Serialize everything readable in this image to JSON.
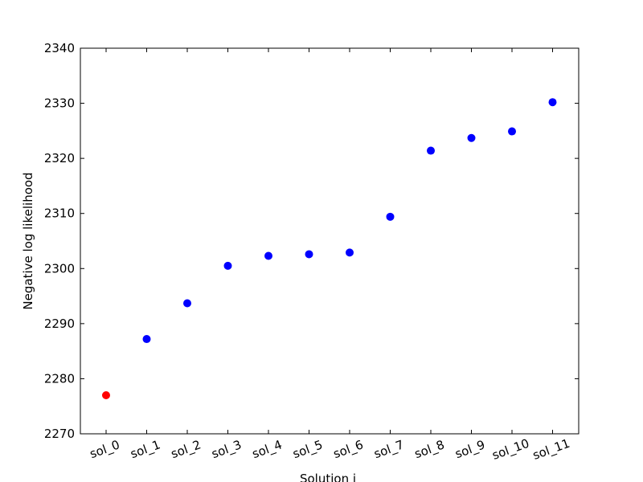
{
  "chart_data": {
    "type": "scatter",
    "title": "",
    "xlabel": "Solution i",
    "ylabel": "Negative log likelihood",
    "categories": [
      "sol_0",
      "sol_1",
      "sol_2",
      "sol_3",
      "sol_4",
      "sol_5",
      "sol_6",
      "sol_7",
      "sol_8",
      "sol_9",
      "sol_10",
      "sol_11"
    ],
    "series": [
      {
        "values": [
          2277.0,
          2287.2,
          2293.7,
          2300.5,
          2302.3,
          2302.6,
          2302.9,
          2309.4,
          2321.4,
          2323.7,
          2324.9,
          2330.2
        ],
        "colors": [
          "#ff0000",
          "#0000ff",
          "#0000ff",
          "#0000ff",
          "#0000ff",
          "#0000ff",
          "#0000ff",
          "#0000ff",
          "#0000ff",
          "#0000ff",
          "#0000ff",
          "#0000ff"
        ]
      }
    ],
    "ylim": [
      2270,
      2340
    ],
    "yticks": [
      "2270",
      "2280",
      "2290",
      "2300",
      "2310",
      "2320",
      "2330",
      "2340"
    ],
    "x_tick_rotation_deg": -20,
    "grid": false,
    "legend": "none"
  }
}
